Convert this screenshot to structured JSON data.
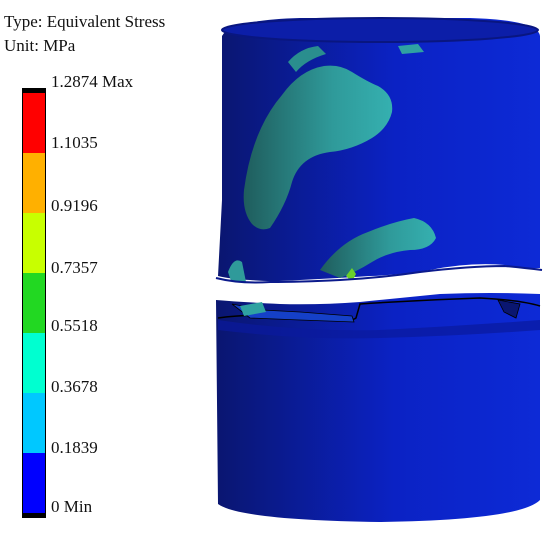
{
  "legend": {
    "type_label": "Type: Equivalent Stress",
    "unit_label": "Unit: MPa",
    "band_colors": [
      "#ff0000",
      "#ffb000",
      "#c8ff00",
      "#22d822",
      "#00ffd0",
      "#00c8ff",
      "#0000ff"
    ],
    "ticks": [
      {
        "label": "1.2874 Max",
        "value": 1.2874
      },
      {
        "label": "1.1035",
        "value": 1.1035
      },
      {
        "label": "0.9196",
        "value": 0.9196
      },
      {
        "label": "0.7357",
        "value": 0.7357
      },
      {
        "label": "0.5518",
        "value": 0.5518
      },
      {
        "label": "0.3678",
        "value": 0.3678
      },
      {
        "label": "0.1839",
        "value": 0.1839
      },
      {
        "label": "0 Min",
        "value": 0
      }
    ]
  },
  "model": {
    "body_color": "#0a1fb8",
    "low_stress_color": "#2f9c9c"
  }
}
